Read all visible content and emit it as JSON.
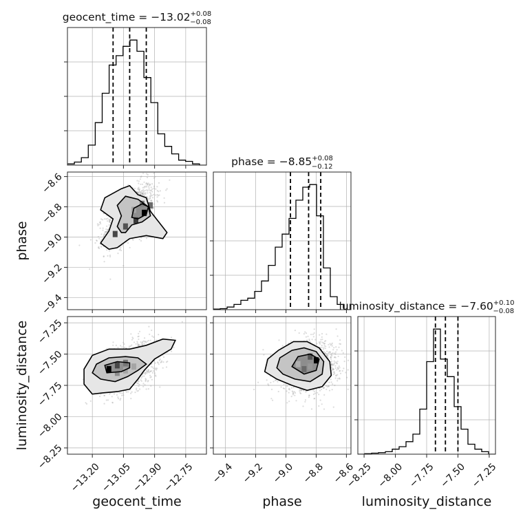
{
  "chart_data": {
    "type": "corner",
    "parameters": [
      "geocent_time",
      "phase",
      "luminosity_distance"
    ],
    "axis_labels": {
      "geocent_time": "geocent_time",
      "phase": "phase",
      "luminosity_distance": "luminosity_distance"
    },
    "ranges": {
      "geocent_time": [
        -13.32,
        -12.65
      ],
      "phase": [
        -9.48,
        -8.57
      ],
      "luminosity_distance": [
        -8.3,
        -7.2
      ]
    },
    "ticks": {
      "geocent_time": [
        -13.2,
        -13.05,
        -12.9,
        -12.75
      ],
      "phase": [
        -9.4,
        -9.2,
        -9.0,
        -8.8,
        -8.6
      ],
      "luminosity_distance": [
        -8.25,
        -8.0,
        -7.75,
        -7.5,
        -7.25
      ]
    },
    "tick_labels": {
      "geocent_time": [
        "−13.20",
        "−13.05",
        "−12.90",
        "−12.75"
      ],
      "phase": [
        "−9.4",
        "−9.2",
        "−9.0",
        "−8.8",
        "−8.6"
      ],
      "luminosity_distance": [
        "−8.25",
        "−8.00",
        "−7.75",
        "−7.50",
        "−7.25"
      ]
    },
    "titles": {
      "geocent_time": {
        "text": "geocent_time = −13.02",
        "plus": "+0.08",
        "minus": "−0.08"
      },
      "phase": {
        "text": "phase = −8.85",
        "plus": "+0.08",
        "minus": "−0.12"
      },
      "luminosity_distance": {
        "text": "luminosity_distance = −7.60",
        "plus": "+0.10",
        "minus": "−0.08"
      }
    },
    "quantiles": {
      "geocent_time": [
        -13.1,
        -13.02,
        -12.94
      ],
      "phase": [
        -8.97,
        -8.85,
        -8.77
      ],
      "luminosity_distance": [
        -7.68,
        -7.6,
        -7.5
      ]
    },
    "histograms": {
      "geocent_time": {
        "edges": [
          -13.32,
          -13.2865,
          -13.253,
          -13.2195,
          -13.186,
          -13.1525,
          -13.119,
          -13.0855,
          -13.052,
          -13.0185,
          -12.985,
          -12.9515,
          -12.918,
          -12.8845,
          -12.851,
          -12.8175,
          -12.784,
          -12.7505,
          -12.717,
          -12.6835,
          -12.65
        ],
        "counts": [
          2,
          5,
          12,
          32,
          68,
          115,
          160,
          175,
          190,
          200,
          182,
          140,
          100,
          50,
          30,
          18,
          8,
          6,
          2,
          0
        ]
      },
      "phase": {
        "edges": [
          -9.48,
          -9.4345,
          -9.389,
          -9.3435,
          -9.298,
          -9.2525,
          -9.207,
          -9.1615,
          -9.116,
          -9.0705,
          -9.025,
          -8.9795,
          -8.934,
          -8.8885,
          -8.843,
          -8.7975,
          -8.752,
          -8.7065,
          -8.661,
          -8.6155,
          -8.57
        ],
        "counts": [
          1,
          2,
          5,
          10,
          18,
          22,
          35,
          55,
          85,
          120,
          145,
          175,
          210,
          235,
          240,
          180,
          80,
          25,
          10,
          0
        ]
      },
      "luminosity_distance": {
        "edges": [
          -8.3,
          -8.245,
          -8.19,
          -8.135,
          -8.08,
          -8.025,
          -7.97,
          -7.915,
          -7.86,
          -7.805,
          -7.75,
          -7.695,
          -7.64,
          -7.585,
          -7.53,
          -7.475,
          -7.42,
          -7.365,
          -7.31,
          -7.255,
          -7.2
        ],
        "counts": [
          0,
          1,
          2,
          3,
          5,
          10,
          15,
          25,
          40,
          90,
          185,
          250,
          190,
          155,
          95,
          50,
          20,
          10,
          5,
          0
        ]
      }
    },
    "contours": {
      "phase_vs_geocent_time": [
        [
          [
            -13.12,
            -9.08
          ],
          [
            -13.16,
            -9.04
          ],
          [
            -13.12,
            -8.96
          ],
          [
            -13.1,
            -8.88
          ],
          [
            -13.16,
            -8.82
          ],
          [
            -13.14,
            -8.74
          ],
          [
            -13.06,
            -8.68
          ],
          [
            -13.02,
            -8.66
          ],
          [
            -12.98,
            -8.72
          ],
          [
            -12.94,
            -8.74
          ],
          [
            -12.92,
            -8.83
          ],
          [
            -12.88,
            -8.9
          ],
          [
            -12.84,
            -8.97
          ],
          [
            -12.86,
            -9.01
          ],
          [
            -12.94,
            -8.99
          ],
          [
            -13.02,
            -9.01
          ],
          [
            -13.08,
            -9.07
          ]
        ],
        [
          [
            -13.06,
            -8.97
          ],
          [
            -13.08,
            -8.93
          ],
          [
            -13.06,
            -8.86
          ],
          [
            -13.08,
            -8.79
          ],
          [
            -13.04,
            -8.73
          ],
          [
            -12.98,
            -8.75
          ],
          [
            -12.93,
            -8.8
          ],
          [
            -12.92,
            -8.86
          ],
          [
            -12.96,
            -8.9
          ],
          [
            -13.01,
            -8.92
          ],
          [
            -13.04,
            -8.97
          ]
        ],
        [
          [
            -13.01,
            -8.87
          ],
          [
            -13.0,
            -8.81
          ],
          [
            -12.96,
            -8.78
          ],
          [
            -12.93,
            -8.8
          ],
          [
            -12.94,
            -8.85
          ],
          [
            -12.98,
            -8.88
          ]
        ]
      ],
      "luminosity_distance_vs_geocent_time": [
        [
          [
            -13.2,
            -7.82
          ],
          [
            -13.24,
            -7.74
          ],
          [
            -13.24,
            -7.62
          ],
          [
            -13.2,
            -7.51
          ],
          [
            -13.12,
            -7.46
          ],
          [
            -13.02,
            -7.46
          ],
          [
            -12.94,
            -7.43
          ],
          [
            -12.86,
            -7.38
          ],
          [
            -12.8,
            -7.39
          ],
          [
            -12.82,
            -7.46
          ],
          [
            -12.9,
            -7.54
          ],
          [
            -12.95,
            -7.63
          ],
          [
            -12.98,
            -7.7
          ],
          [
            -13.02,
            -7.78
          ],
          [
            -13.08,
            -7.8
          ],
          [
            -13.15,
            -7.81
          ]
        ],
        [
          [
            -13.16,
            -7.7
          ],
          [
            -13.2,
            -7.65
          ],
          [
            -13.18,
            -7.58
          ],
          [
            -13.12,
            -7.53
          ],
          [
            -13.04,
            -7.52
          ],
          [
            -12.98,
            -7.53
          ],
          [
            -12.94,
            -7.58
          ],
          [
            -12.98,
            -7.63
          ],
          [
            -13.03,
            -7.68
          ],
          [
            -13.09,
            -7.72
          ]
        ],
        [
          [
            -13.13,
            -7.65
          ],
          [
            -13.14,
            -7.59
          ],
          [
            -13.08,
            -7.56
          ],
          [
            -13.02,
            -7.57
          ],
          [
            -13.02,
            -7.61
          ],
          [
            -13.06,
            -7.64
          ]
        ]
      ],
      "luminosity_distance_vs_phase": [
        [
          [
            -9.14,
            -7.64
          ],
          [
            -9.12,
            -7.54
          ],
          [
            -9.05,
            -7.47
          ],
          [
            -8.95,
            -7.4
          ],
          [
            -8.86,
            -7.4
          ],
          [
            -8.78,
            -7.45
          ],
          [
            -8.71,
            -7.56
          ],
          [
            -8.7,
            -7.67
          ],
          [
            -8.76,
            -7.76
          ],
          [
            -8.86,
            -7.79
          ],
          [
            -8.96,
            -7.75
          ],
          [
            -9.06,
            -7.7
          ]
        ],
        [
          [
            -9.06,
            -7.61
          ],
          [
            -9.04,
            -7.53
          ],
          [
            -8.96,
            -7.47
          ],
          [
            -8.88,
            -7.45
          ],
          [
            -8.8,
            -7.48
          ],
          [
            -8.75,
            -7.56
          ],
          [
            -8.76,
            -7.66
          ],
          [
            -8.84,
            -7.72
          ],
          [
            -8.94,
            -7.7
          ],
          [
            -9.02,
            -7.66
          ]
        ],
        [
          [
            -8.96,
            -7.6
          ],
          [
            -8.92,
            -7.52
          ],
          [
            -8.84,
            -7.5
          ],
          [
            -8.78,
            -7.54
          ],
          [
            -8.8,
            -7.63
          ],
          [
            -8.88,
            -7.66
          ]
        ]
      ]
    },
    "density_blocks": {
      "phase_vs_geocent_time": [
        {
          "x": -12.95,
          "y": -8.84,
          "level": 1.0
        },
        {
          "x": -12.99,
          "y": -8.89,
          "level": 0.75
        },
        {
          "x": -13.04,
          "y": -8.93,
          "level": 0.65
        },
        {
          "x": -12.92,
          "y": -8.79,
          "level": 0.55
        },
        {
          "x": -12.96,
          "y": -8.78,
          "level": 0.45
        },
        {
          "x": -13.0,
          "y": -8.82,
          "level": 0.3
        },
        {
          "x": -13.09,
          "y": -8.98,
          "level": 0.7
        }
      ],
      "luminosity_distance_vs_geocent_time": [
        {
          "x": -13.12,
          "y": -7.62,
          "level": 1.0
        },
        {
          "x": -13.08,
          "y": -7.59,
          "level": 0.7
        },
        {
          "x": -13.04,
          "y": -7.57,
          "level": 0.5
        },
        {
          "x": -13.08,
          "y": -7.65,
          "level": 0.4
        },
        {
          "x": -13.0,
          "y": -7.6,
          "level": 0.3
        },
        {
          "x": -13.04,
          "y": -7.63,
          "level": 0.3
        }
      ],
      "luminosity_distance_vs_phase": [
        {
          "x": -8.8,
          "y": -7.55,
          "level": 1.0
        },
        {
          "x": -8.84,
          "y": -7.52,
          "level": 0.65
        },
        {
          "x": -8.88,
          "y": -7.62,
          "level": 0.55
        },
        {
          "x": -8.88,
          "y": -7.56,
          "level": 0.4
        },
        {
          "x": -8.84,
          "y": -7.6,
          "level": 0.35
        },
        {
          "x": -8.92,
          "y": -7.58,
          "level": 0.25
        }
      ]
    },
    "colors": {
      "line": "#000000",
      "scatter": "#9a9a9a",
      "grid": "#b0b0b0"
    },
    "grid": true,
    "legend": "none"
  }
}
